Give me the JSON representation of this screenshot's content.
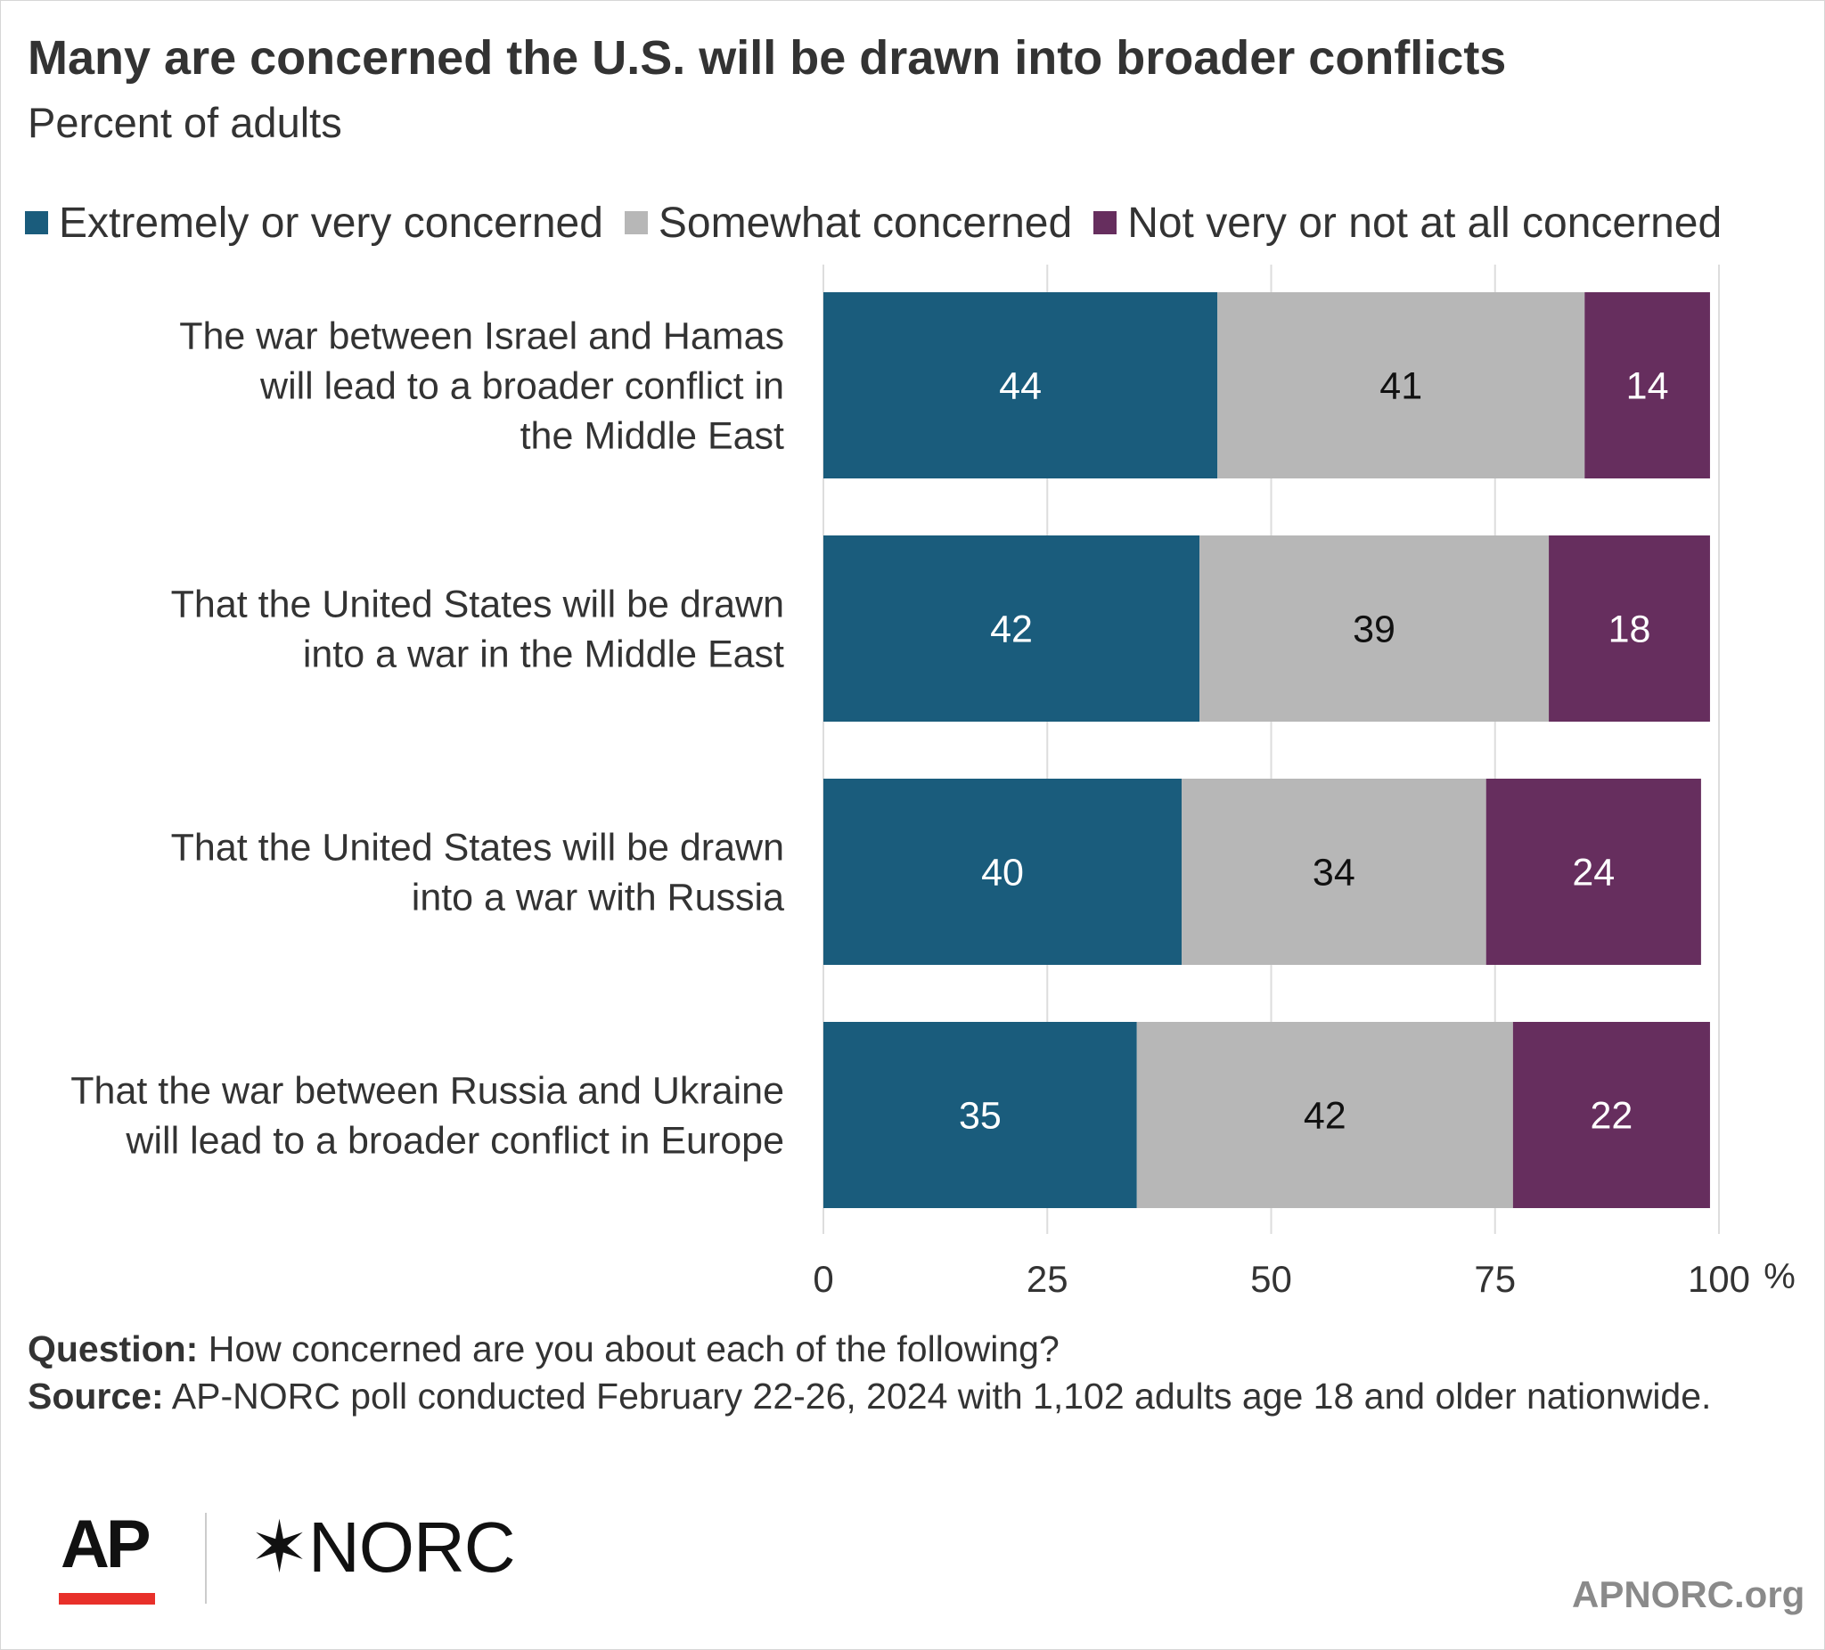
{
  "title": "Many are concerned the U.S. will be drawn into broader conflicts",
  "subtitle": "Percent of adults",
  "legend": [
    {
      "label": "Extremely or very concerned",
      "color": "#1a5c7c"
    },
    {
      "label": "Somewhat concerned",
      "color": "#b7b7b7"
    },
    {
      "label": "Not very or not at all concerned",
      "color": "#662e5e"
    }
  ],
  "chart_data": {
    "type": "bar",
    "orientation": "horizontal",
    "stacked": true,
    "title": "Many are concerned the U.S. will be drawn into broader conflicts",
    "subtitle": "Percent of adults",
    "categories": [
      "The war between Israel and Hamas will lead to a broader conflict in the Middle East",
      "That the United States will be drawn into a war in the Middle East",
      "That the United States will be drawn into a war with Russia",
      "That the war between Russia and Ukraine will lead to a broader conflict in Europe"
    ],
    "category_lines": [
      [
        "The war between Israel and Hamas",
        "will lead to a broader conflict in",
        "the Middle East"
      ],
      [
        "That the United States will be drawn",
        "into a war in the Middle East"
      ],
      [
        "That the United States will be drawn",
        "into a war with Russia"
      ],
      [
        "That the war between Russia and Ukraine",
        "will lead to a broader conflict in Europe"
      ]
    ],
    "series": [
      {
        "name": "Extremely or very concerned",
        "values": [
          44,
          42,
          40,
          35
        ],
        "color": "#1a5c7c",
        "label_color": "#ffffff"
      },
      {
        "name": "Somewhat concerned",
        "values": [
          41,
          39,
          34,
          42
        ],
        "color": "#b7b7b7",
        "label_color": "#111111"
      },
      {
        "name": "Not very or not at all concerned",
        "values": [
          14,
          18,
          24,
          22
        ],
        "color": "#662e5e",
        "label_color": "#ffffff"
      }
    ],
    "xlim": [
      0,
      100
    ],
    "xticks": [
      "0",
      "25",
      "50",
      "75",
      "100"
    ],
    "x_unit": "%",
    "grid": true,
    "legend_position": "top-left"
  },
  "footer": {
    "question_label": "Question:",
    "question_text": "How concerned are you about each of the following?",
    "source_label": "Source:",
    "source_text": "AP-NORC poll conducted February 22-26, 2024 with 1,102 adults age 18 and older nationwide."
  },
  "logos": {
    "ap": "AP",
    "norc_star": "✶",
    "norc_text": "NORC"
  },
  "site": "APNORC.org"
}
